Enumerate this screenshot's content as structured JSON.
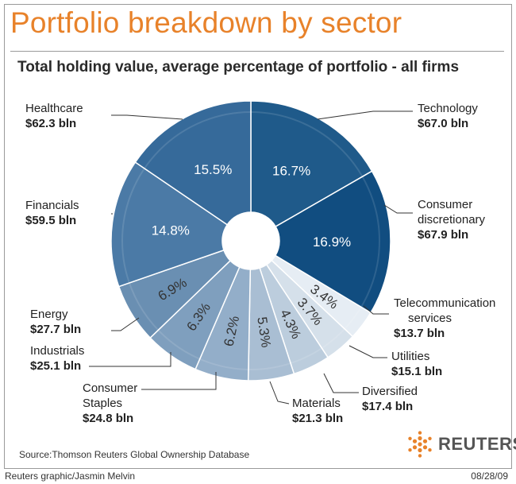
{
  "title": "Portfolio breakdown by sector",
  "subtitle": "Total holding value, average percentage of portfolio - all firms",
  "source": "Source:Thomson Reuters Global Ownership Database",
  "credit": "Reuters graphic/Jasmin Melvin",
  "date": "08/28/09",
  "brand": "REUTERS",
  "colors": {
    "title": "#e8822a",
    "Technology": "#1f5a8a",
    "Consumer discretionary": "#114d80",
    "Telecommunication services": "#e6edf4",
    "Utilities": "#d5e0ea",
    "Diversified": "#bccddd",
    "Materials": "#a9bed3",
    "Consumer Staples": "#93aec9",
    "Industrials": "#7f9fbe",
    "Energy": "#6a8fb2",
    "Financials": "#4b7aa6",
    "Healthcare": "#366a9a"
  },
  "chart_data": {
    "type": "pie",
    "title": "Portfolio breakdown by sector",
    "subtitle": "Total holding value, average percentage of portfolio - all firms",
    "slices": [
      {
        "name": "Technology",
        "percent": 16.7,
        "pct_label": "16.7%",
        "value_label": "$67.0 bln"
      },
      {
        "name": "Consumer discretionary",
        "percent": 16.9,
        "pct_label": "16.9%",
        "value_label": "$67.9 bln"
      },
      {
        "name": "Telecommunication services",
        "percent": 3.4,
        "pct_label": "3.4%",
        "value_label": "$13.7 bln"
      },
      {
        "name": "Utilities",
        "percent": 3.7,
        "pct_label": "3.7%",
        "value_label": "$15.1 bln"
      },
      {
        "name": "Diversified",
        "percent": 4.3,
        "pct_label": "4.3%",
        "value_label": "$17.4 bln"
      },
      {
        "name": "Materials",
        "percent": 5.3,
        "pct_label": "5.3%",
        "value_label": "$21.3 bln"
      },
      {
        "name": "Consumer Staples",
        "percent": 6.2,
        "pct_label": "6.2%",
        "value_label": "$24.8 bln"
      },
      {
        "name": "Industrials",
        "percent": 6.3,
        "pct_label": "6.3%",
        "value_label": "$25.1 bln"
      },
      {
        "name": "Energy",
        "percent": 6.9,
        "pct_label": "6.9%",
        "value_label": "$27.7 bln"
      },
      {
        "name": "Financials",
        "percent": 14.8,
        "pct_label": "14.8%",
        "value_label": "$59.5 bln"
      },
      {
        "name": "Healthcare",
        "percent": 15.5,
        "pct_label": "15.5%",
        "value_label": "$62.3 bln"
      }
    ]
  },
  "labels": [
    {
      "lines": [
        "Technology"
      ],
      "value": "$67.0 bln"
    },
    {
      "lines": [
        "Consumer",
        "discretionary"
      ],
      "value": "$67.9 bln"
    },
    {
      "lines": [
        "Telecommunication",
        "services"
      ],
      "value": "$13.7 bln"
    },
    {
      "lines": [
        "Utilities"
      ],
      "value": "$15.1 bln"
    },
    {
      "lines": [
        "Diversified"
      ],
      "value": "$17.4 bln"
    },
    {
      "lines": [
        "Materials"
      ],
      "value": "$21.3 bln"
    },
    {
      "lines": [
        "Consumer",
        "Staples"
      ],
      "value": "$24.8 bln"
    },
    {
      "lines": [
        "Industrials"
      ],
      "value": "$25.1 bln"
    },
    {
      "lines": [
        "Energy"
      ],
      "value": "$27.7 bln"
    },
    {
      "lines": [
        "Financials"
      ],
      "value": "$59.5 bln"
    },
    {
      "lines": [
        "Healthcare"
      ],
      "value": "$62.3 bln"
    }
  ]
}
